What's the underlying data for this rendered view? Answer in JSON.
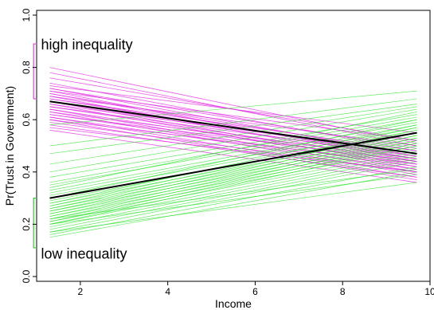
{
  "chart_data": {
    "type": "line",
    "title": "",
    "xlabel": "Income",
    "ylabel": "Pr(Trust in Government)",
    "xlim": [
      1.0,
      10.0
    ],
    "ylim": [
      0.0,
      1.0
    ],
    "x_ticks": [
      2,
      4,
      6,
      8,
      10
    ],
    "x_tick_labels": [
      "2",
      "4",
      "6",
      "8",
      "10"
    ],
    "y_ticks": [
      0.0,
      0.2,
      0.4,
      0.6,
      0.8,
      1.0
    ],
    "y_tick_labels": [
      "0.0",
      "0.2",
      "0.4",
      "0.6",
      "0.8",
      "1.0"
    ],
    "grid": false,
    "legend": "none",
    "x_range_lines": [
      1.3,
      9.7
    ],
    "annotations": [
      {
        "text": "high inequality",
        "x": 1.1,
        "y": 0.89,
        "color": "#000000"
      },
      {
        "text": "low inequality",
        "x": 1.1,
        "y": 0.09,
        "color": "#000000"
      }
    ],
    "brackets": [
      {
        "name": "high-inequality-bracket",
        "x": 0.93,
        "y0": 0.68,
        "y1": 0.89,
        "color": "#d04fd0"
      },
      {
        "name": "low-inequality-bracket",
        "x": 0.93,
        "y0": 0.11,
        "y1": 0.3,
        "color": "#40c040"
      }
    ],
    "colors": {
      "high": "#e020e0",
      "low": "#20e020",
      "mean": "#000000"
    },
    "series_high": [
      [
        0.8,
        0.51
      ],
      [
        0.78,
        0.5
      ],
      [
        0.76,
        0.52
      ],
      [
        0.74,
        0.48
      ],
      [
        0.73,
        0.55
      ],
      [
        0.72,
        0.46
      ],
      [
        0.72,
        0.49
      ],
      [
        0.71,
        0.44
      ],
      [
        0.71,
        0.52
      ],
      [
        0.7,
        0.45
      ],
      [
        0.7,
        0.47
      ],
      [
        0.69,
        0.5
      ],
      [
        0.69,
        0.43
      ],
      [
        0.68,
        0.46
      ],
      [
        0.68,
        0.48
      ],
      [
        0.67,
        0.42
      ],
      [
        0.67,
        0.45
      ],
      [
        0.66,
        0.47
      ],
      [
        0.66,
        0.41
      ],
      [
        0.65,
        0.44
      ],
      [
        0.65,
        0.46
      ],
      [
        0.64,
        0.4
      ],
      [
        0.64,
        0.43
      ],
      [
        0.63,
        0.45
      ],
      [
        0.63,
        0.39
      ],
      [
        0.62,
        0.42
      ],
      [
        0.62,
        0.44
      ],
      [
        0.61,
        0.38
      ],
      [
        0.61,
        0.41
      ],
      [
        0.6,
        0.37
      ],
      [
        0.6,
        0.43
      ],
      [
        0.59,
        0.4
      ],
      [
        0.58,
        0.38
      ],
      [
        0.57,
        0.4
      ],
      [
        0.56,
        0.36
      ]
    ],
    "series_low": [
      [
        0.58,
        0.71
      ],
      [
        0.5,
        0.68
      ],
      [
        0.47,
        0.66
      ],
      [
        0.43,
        0.65
      ],
      [
        0.4,
        0.64
      ],
      [
        0.38,
        0.62
      ],
      [
        0.36,
        0.61
      ],
      [
        0.35,
        0.6
      ],
      [
        0.34,
        0.63
      ],
      [
        0.33,
        0.59
      ],
      [
        0.32,
        0.58
      ],
      [
        0.31,
        0.57
      ],
      [
        0.3,
        0.6
      ],
      [
        0.29,
        0.56
      ],
      [
        0.28,
        0.55
      ],
      [
        0.28,
        0.58
      ],
      [
        0.27,
        0.54
      ],
      [
        0.27,
        0.57
      ],
      [
        0.26,
        0.53
      ],
      [
        0.26,
        0.56
      ],
      [
        0.25,
        0.52
      ],
      [
        0.25,
        0.55
      ],
      [
        0.24,
        0.51
      ],
      [
        0.24,
        0.54
      ],
      [
        0.23,
        0.5
      ],
      [
        0.23,
        0.53
      ],
      [
        0.22,
        0.49
      ],
      [
        0.22,
        0.52
      ],
      [
        0.21,
        0.48
      ],
      [
        0.21,
        0.51
      ],
      [
        0.2,
        0.47
      ],
      [
        0.2,
        0.5
      ],
      [
        0.19,
        0.46
      ],
      [
        0.18,
        0.45
      ],
      [
        0.17,
        0.44
      ],
      [
        0.16,
        0.42
      ],
      [
        0.15,
        0.4
      ],
      [
        0.17,
        0.36
      ],
      [
        0.2,
        0.39
      ],
      [
        0.22,
        0.41
      ]
    ],
    "series_mean": [
      {
        "name": "",
        "x": [
          1.3,
          9.7
        ],
        "y": [
          0.67,
          0.47
        ]
      },
      {
        "name": "",
        "x": [
          1.3,
          9.7
        ],
        "y": [
          0.3,
          0.55
        ]
      }
    ]
  }
}
